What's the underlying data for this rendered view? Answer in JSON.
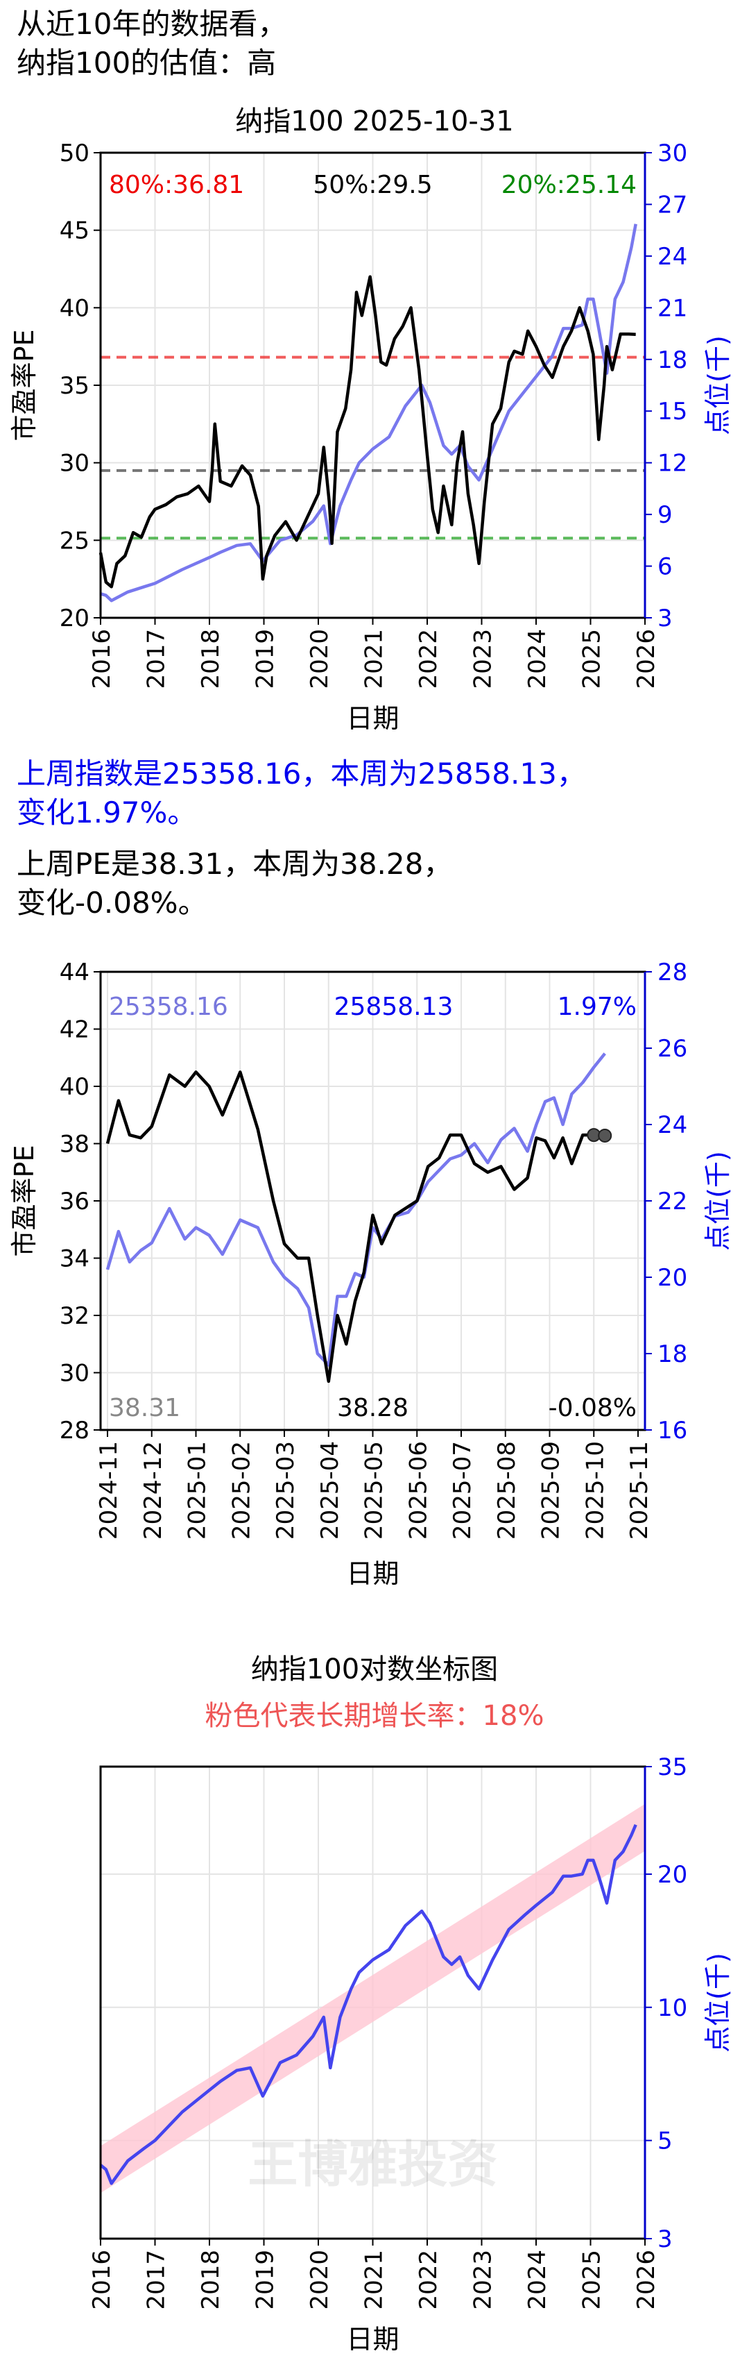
{
  "header": {
    "line1": "从近10年的数据看，",
    "line2": "纳指100的估值：高"
  },
  "summary": {
    "index_line1": "上周指数是25358.16，本周为25858.13，",
    "index_line2": "变化1.97%。",
    "pe_line1": "上周PE是38.31，本周为38.28，",
    "pe_line2": "变化-0.08%。"
  },
  "chart_data": [
    {
      "type": "line",
      "title": "纳指100 2025-10-31",
      "xlabel": "日期",
      "ylabel": "市盈率PE",
      "y2label": "点位(千)",
      "xlim": [
        2016.0,
        2026.0
      ],
      "ylim": [
        20,
        50
      ],
      "y2lim": [
        3,
        30
      ],
      "x_ticks": [
        "2016",
        "2017",
        "2018",
        "2019",
        "2020",
        "2021",
        "2022",
        "2023",
        "2024",
        "2025",
        "2026"
      ],
      "y_ticks": [
        20,
        25,
        30,
        35,
        40,
        45,
        50
      ],
      "y2_ticks": [
        3,
        6,
        9,
        12,
        15,
        18,
        21,
        24,
        27,
        30
      ],
      "grid": true,
      "colors": {
        "pe": "#000000",
        "index": "#7878ee",
        "p80": "#ee3333",
        "p50": "#555555",
        "p20": "#33aa33"
      },
      "percentiles": [
        {
          "label": "80%:36.81",
          "value": 36.81,
          "color": "#ee0000"
        },
        {
          "label": "50%:29.5",
          "value": 29.5,
          "color": "#000000"
        },
        {
          "label": "20%:25.14",
          "value": 25.14,
          "color": "#008800"
        }
      ],
      "series": [
        {
          "axis": "left",
          "x": [
            2016.0,
            2016.1,
            2016.2,
            2016.3,
            2016.45,
            2016.6,
            2016.75,
            2016.9,
            2017.0,
            2017.2,
            2017.4,
            2017.6,
            2017.8,
            2018.0,
            2018.05,
            2018.1,
            2018.2,
            2018.4,
            2018.6,
            2018.75,
            2018.9,
            2018.98,
            2019.05,
            2019.2,
            2019.4,
            2019.6,
            2019.8,
            2020.0,
            2020.1,
            2020.2,
            2020.25,
            2020.35,
            2020.5,
            2020.6,
            2020.7,
            2020.8,
            2020.95,
            2021.05,
            2021.15,
            2021.25,
            2021.4,
            2021.55,
            2021.7,
            2021.85,
            2022.0,
            2022.1,
            2022.2,
            2022.3,
            2022.45,
            2022.55,
            2022.65,
            2022.75,
            2022.85,
            2022.95,
            2023.05,
            2023.2,
            2023.35,
            2023.5,
            2023.6,
            2023.75,
            2023.85,
            2024.0,
            2024.15,
            2024.3,
            2024.5,
            2024.65,
            2024.8,
            2024.95,
            2025.05,
            2025.15,
            2025.25,
            2025.3,
            2025.4,
            2025.55,
            2025.7,
            2025.83
          ],
          "values": [
            24.2,
            22.3,
            22.0,
            23.5,
            24.0,
            25.5,
            25.2,
            26.5,
            27.0,
            27.3,
            27.8,
            28.0,
            28.5,
            27.5,
            29.5,
            32.5,
            28.8,
            28.5,
            29.8,
            29.2,
            27.2,
            22.5,
            24.0,
            25.3,
            26.2,
            25.0,
            26.5,
            28.0,
            31.0,
            27.5,
            24.8,
            32.0,
            33.5,
            36.0,
            41.0,
            39.5,
            42.0,
            39.5,
            36.5,
            36.3,
            38.0,
            38.8,
            40.0,
            36.0,
            30.5,
            27.0,
            25.5,
            28.5,
            26.0,
            30.0,
            32.0,
            28.0,
            26.0,
            23.5,
            27.5,
            32.5,
            33.5,
            36.5,
            37.2,
            37.0,
            38.5,
            37.5,
            36.3,
            35.5,
            37.5,
            38.5,
            40.0,
            38.5,
            37.0,
            31.5,
            35.0,
            37.5,
            36.0,
            38.3,
            38.3,
            38.28
          ]
        },
        {
          "axis": "right",
          "x": [
            2016.0,
            2016.1,
            2016.2,
            2016.5,
            2016.8,
            2017.0,
            2017.5,
            2018.0,
            2018.2,
            2018.5,
            2018.75,
            2018.98,
            2019.3,
            2019.6,
            2019.9,
            2020.1,
            2020.22,
            2020.4,
            2020.6,
            2020.75,
            2021.0,
            2021.3,
            2021.6,
            2021.9,
            2022.05,
            2022.3,
            2022.45,
            2022.6,
            2022.75,
            2022.95,
            2023.2,
            2023.5,
            2023.8,
            2024.0,
            2024.3,
            2024.5,
            2024.65,
            2024.85,
            2024.95,
            2025.05,
            2025.15,
            2025.3,
            2025.45,
            2025.6,
            2025.75,
            2025.83
          ],
          "values": [
            4.4,
            4.3,
            4.0,
            4.5,
            4.8,
            5.0,
            5.8,
            6.5,
            6.8,
            7.2,
            7.3,
            6.3,
            7.5,
            7.8,
            8.6,
            9.5,
            7.3,
            9.5,
            11.0,
            12.0,
            12.8,
            13.5,
            15.3,
            16.5,
            15.5,
            13.0,
            12.5,
            13.0,
            11.8,
            11.0,
            12.8,
            15.0,
            16.2,
            17.0,
            18.2,
            19.8,
            19.8,
            20.0,
            21.5,
            21.5,
            19.8,
            17.2,
            21.5,
            22.5,
            24.5,
            25.86
          ]
        }
      ]
    },
    {
      "type": "line",
      "xlabel": "日期",
      "ylabel": "市盈率PE",
      "y2label": "点位(千)",
      "xlim": [
        "2024-11",
        "2025-11"
      ],
      "ylim": [
        28,
        44
      ],
      "y2lim": [
        16,
        28
      ],
      "x_ticks": [
        "2024-11",
        "2024-12",
        "2025-01",
        "2025-02",
        "2025-03",
        "2025-04",
        "2025-05",
        "2025-06",
        "2025-07",
        "2025-08",
        "2025-09",
        "2025-10",
        "2025-11"
      ],
      "y_ticks": [
        28,
        30,
        32,
        34,
        36,
        38,
        40,
        42,
        44
      ],
      "y2_ticks": [
        16,
        18,
        20,
        22,
        24,
        26,
        28
      ],
      "grid": true,
      "colors": {
        "pe": "#000000",
        "index": "#7878ee"
      },
      "annotations": {
        "index_last": "25358.16",
        "index_now": "25858.13",
        "index_change": "1.97%",
        "pe_last": "38.31",
        "pe_now": "38.28",
        "pe_change": "-0.08%"
      },
      "annotation_colors": {
        "index_last": "#7777dd",
        "index_now": "#0000ee",
        "index_change": "#0000ee",
        "pe_last": "#888888",
        "pe_now": "#000000",
        "pe_change": "#000000"
      },
      "series": [
        {
          "axis": "left",
          "x": [
            0,
            0.25,
            0.5,
            0.75,
            1.0,
            1.4,
            1.75,
            2.0,
            2.3,
            2.6,
            3.0,
            3.4,
            3.75,
            4.0,
            4.3,
            4.55,
            4.75,
            5.0,
            5.2,
            5.4,
            5.6,
            5.8,
            6.0,
            6.2,
            6.5,
            6.8,
            7.0,
            7.25,
            7.5,
            7.75,
            8.0,
            8.3,
            8.6,
            8.9,
            9.2,
            9.5,
            9.7,
            9.9,
            10.1,
            10.3,
            10.5,
            10.75,
            11.0,
            11.25
          ],
          "values": [
            38.0,
            39.5,
            38.3,
            38.2,
            38.6,
            40.4,
            40.0,
            40.5,
            40.0,
            39.0,
            40.5,
            38.5,
            36.0,
            34.5,
            34.0,
            34.0,
            32.0,
            29.7,
            32.0,
            31.0,
            32.5,
            33.5,
            35.5,
            34.5,
            35.5,
            35.8,
            36.0,
            37.2,
            37.5,
            38.3,
            38.3,
            37.3,
            37.0,
            37.2,
            36.4,
            36.8,
            38.2,
            38.1,
            37.5,
            38.2,
            37.3,
            38.3,
            38.3,
            38.28
          ]
        },
        {
          "axis": "right",
          "x": [
            0,
            0.25,
            0.5,
            0.75,
            1.0,
            1.4,
            1.75,
            2.0,
            2.3,
            2.6,
            3.0,
            3.4,
            3.75,
            4.0,
            4.3,
            4.55,
            4.75,
            5.0,
            5.2,
            5.4,
            5.6,
            5.8,
            6.0,
            6.2,
            6.5,
            6.8,
            7.0,
            7.25,
            7.5,
            7.75,
            8.0,
            8.3,
            8.6,
            8.9,
            9.2,
            9.5,
            9.7,
            9.9,
            10.1,
            10.3,
            10.5,
            10.75,
            11.0,
            11.25
          ],
          "values": [
            20.2,
            21.2,
            20.4,
            20.7,
            20.9,
            21.8,
            21.0,
            21.3,
            21.1,
            20.6,
            21.5,
            21.3,
            20.4,
            20.0,
            19.7,
            19.2,
            18.0,
            17.7,
            19.5,
            19.5,
            20.1,
            20.0,
            21.3,
            21.0,
            21.6,
            21.7,
            22.0,
            22.5,
            22.8,
            23.1,
            23.2,
            23.5,
            23.0,
            23.6,
            23.9,
            23.3,
            24.0,
            24.6,
            24.7,
            24.0,
            24.8,
            25.1,
            25.5,
            25.86
          ]
        }
      ]
    },
    {
      "type": "line",
      "title": "纳指100对数坐标图",
      "subtitle": "粉色代表长期增长率：18%",
      "xlabel": "日期",
      "y2label": "点位(千)",
      "yscale": "log",
      "xlim": [
        2016.0,
        2026.0
      ],
      "y2lim": [
        3,
        35
      ],
      "x_ticks": [
        "2016",
        "2017",
        "2018",
        "2019",
        "2020",
        "2021",
        "2022",
        "2023",
        "2024",
        "2025",
        "2026"
      ],
      "y2_ticks": [
        3,
        5,
        10,
        20,
        35
      ],
      "grid": true,
      "watermark": "王博雅投资",
      "colors": {
        "index": "#4444ee",
        "band": "#ffc6d2",
        "subtitle": "#ee5555"
      },
      "trend_band": {
        "growth_rate": 0.18,
        "start": [
          2016.0,
          4.3
        ],
        "end": [
          2026.0,
          25.5
        ],
        "width_factor": 1.13
      },
      "series": [
        {
          "axis": "right",
          "x": [
            2016.0,
            2016.1,
            2016.2,
            2016.5,
            2016.8,
            2017.0,
            2017.5,
            2018.0,
            2018.2,
            2018.5,
            2018.75,
            2018.98,
            2019.3,
            2019.6,
            2019.9,
            2020.1,
            2020.22,
            2020.4,
            2020.6,
            2020.75,
            2021.0,
            2021.3,
            2021.6,
            2021.9,
            2022.05,
            2022.3,
            2022.45,
            2022.6,
            2022.75,
            2022.95,
            2023.2,
            2023.5,
            2023.8,
            2024.0,
            2024.3,
            2024.5,
            2024.65,
            2024.85,
            2024.95,
            2025.05,
            2025.15,
            2025.3,
            2025.45,
            2025.6,
            2025.75,
            2025.83
          ],
          "values": [
            4.4,
            4.3,
            4.0,
            4.5,
            4.8,
            5.0,
            5.8,
            6.5,
            6.8,
            7.2,
            7.3,
            6.3,
            7.5,
            7.8,
            8.6,
            9.5,
            7.3,
            9.5,
            11.0,
            12.0,
            12.8,
            13.5,
            15.3,
            16.5,
            15.5,
            13.0,
            12.5,
            13.0,
            11.8,
            11.0,
            12.8,
            15.0,
            16.2,
            17.0,
            18.2,
            19.8,
            19.8,
            20.0,
            21.5,
            21.5,
            19.8,
            17.2,
            21.5,
            22.5,
            24.5,
            25.86
          ]
        }
      ]
    }
  ]
}
